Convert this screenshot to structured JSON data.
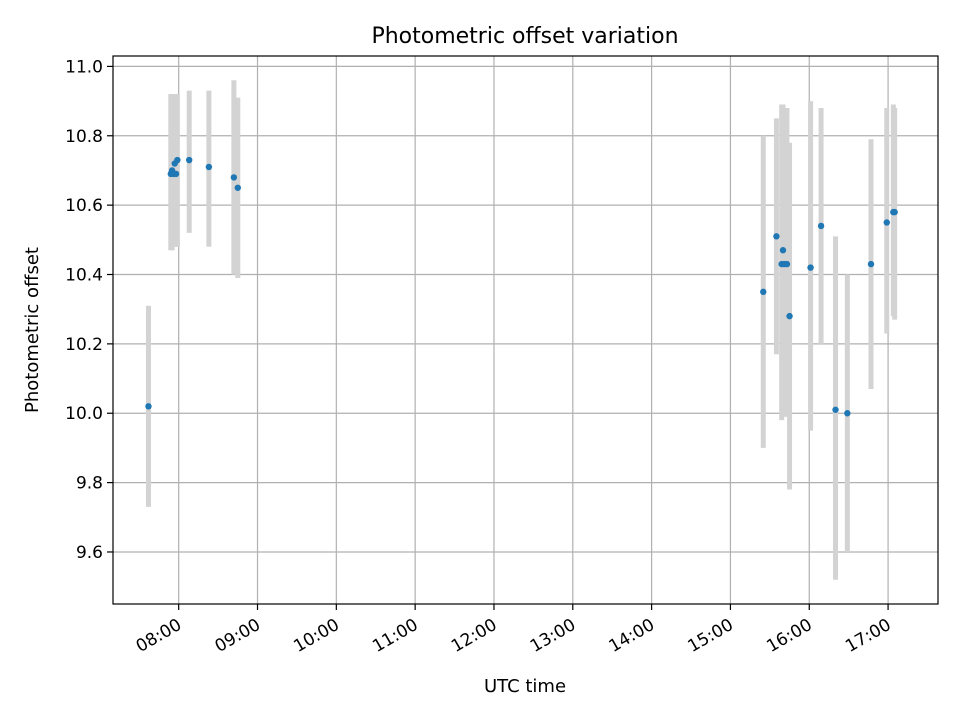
{
  "chart_data": {
    "type": "scatter",
    "title": "Photometric offset variation",
    "xlabel": "UTC time",
    "ylabel": "Photometric offset",
    "xlim": [
      "07:10",
      "17:38"
    ],
    "ylim": [
      9.45,
      11.03
    ],
    "grid": true,
    "x_ticks": [
      "08:00",
      "09:00",
      "10:00",
      "11:00",
      "12:00",
      "13:00",
      "14:00",
      "15:00",
      "16:00",
      "17:00"
    ],
    "y_ticks": [
      "9.6",
      "9.8",
      "10.0",
      "10.2",
      "10.4",
      "10.6",
      "10.8",
      "11.0"
    ],
    "colors": {
      "marker": "#1f77b4",
      "errorbar": "#d3d3d3",
      "grid": "#b0b0b0"
    },
    "points": [
      {
        "x": "07:37",
        "y": 10.02,
        "yerr_low": 9.73,
        "yerr_high": 10.31
      },
      {
        "x": "07:54",
        "y": 10.69,
        "yerr_low": 10.47,
        "yerr_high": 10.92
      },
      {
        "x": "07:55",
        "y": 10.7,
        "yerr_low": 10.47,
        "yerr_high": 10.92
      },
      {
        "x": "07:56",
        "y": 10.69,
        "yerr_low": 10.48,
        "yerr_high": 10.92
      },
      {
        "x": "07:57",
        "y": 10.72,
        "yerr_low": 10.48,
        "yerr_high": 10.92
      },
      {
        "x": "07:58",
        "y": 10.69,
        "yerr_low": 10.48,
        "yerr_high": 10.92
      },
      {
        "x": "07:59",
        "y": 10.73,
        "yerr_low": 10.48,
        "yerr_high": 10.92
      },
      {
        "x": "08:08",
        "y": 10.73,
        "yerr_low": 10.52,
        "yerr_high": 10.93
      },
      {
        "x": "08:23",
        "y": 10.71,
        "yerr_low": 10.48,
        "yerr_high": 10.93
      },
      {
        "x": "08:42",
        "y": 10.68,
        "yerr_low": 10.4,
        "yerr_high": 10.96
      },
      {
        "x": "08:45",
        "y": 10.65,
        "yerr_low": 10.39,
        "yerr_high": 10.91
      },
      {
        "x": "15:25",
        "y": 10.35,
        "yerr_low": 9.9,
        "yerr_high": 10.8
      },
      {
        "x": "15:35",
        "y": 10.51,
        "yerr_low": 10.17,
        "yerr_high": 10.85
      },
      {
        "x": "15:39",
        "y": 10.43,
        "yerr_low": 9.98,
        "yerr_high": 10.89
      },
      {
        "x": "15:40",
        "y": 10.47,
        "yerr_low": 10.05,
        "yerr_high": 10.89
      },
      {
        "x": "15:41",
        "y": 10.43,
        "yerr_low": 9.99,
        "yerr_high": 10.88
      },
      {
        "x": "15:43",
        "y": 10.43,
        "yerr_low": 9.99,
        "yerr_high": 10.88
      },
      {
        "x": "15:45",
        "y": 10.28,
        "yerr_low": 9.78,
        "yerr_high": 10.78
      },
      {
        "x": "16:01",
        "y": 10.42,
        "yerr_low": 9.95,
        "yerr_high": 10.9
      },
      {
        "x": "16:09",
        "y": 10.54,
        "yerr_low": 10.2,
        "yerr_high": 10.88
      },
      {
        "x": "16:20",
        "y": 10.01,
        "yerr_low": 9.52,
        "yerr_high": 10.51
      },
      {
        "x": "16:29",
        "y": 10.0,
        "yerr_low": 9.6,
        "yerr_high": 10.4
      },
      {
        "x": "16:47",
        "y": 10.43,
        "yerr_low": 10.07,
        "yerr_high": 10.79
      },
      {
        "x": "16:59",
        "y": 10.55,
        "yerr_low": 10.23,
        "yerr_high": 10.88
      },
      {
        "x": "17:04",
        "y": 10.58,
        "yerr_low": 10.28,
        "yerr_high": 10.89
      },
      {
        "x": "17:05",
        "y": 10.58,
        "yerr_low": 10.27,
        "yerr_high": 10.88
      }
    ]
  }
}
